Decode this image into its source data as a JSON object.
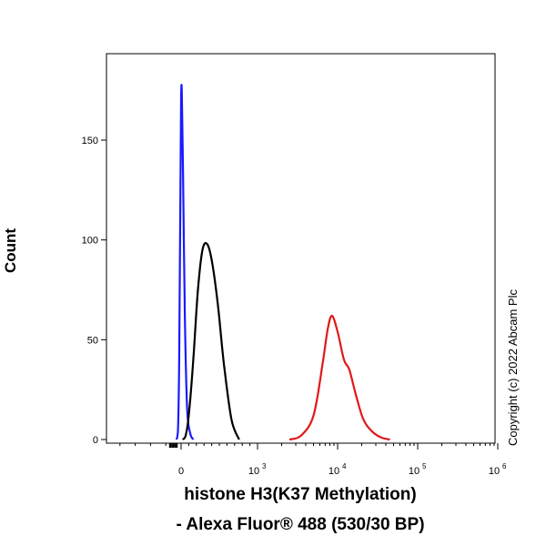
{
  "chart_data": {
    "type": "line",
    "ylabel": "Count",
    "xlabel_line1": "histone H3(K37 Methylation)",
    "xlabel_line2": "- Alexa Fluor® 488 (530/30 BP)",
    "copyright": "Copyright (c) 2022 Abcam Plc",
    "y_ticks": [
      {
        "value": 0,
        "label": "0"
      },
      {
        "value": 50,
        "label": "50"
      },
      {
        "value": 100,
        "label": "100"
      },
      {
        "value": 150,
        "label": "150"
      }
    ],
    "ylim": [
      0,
      195
    ],
    "x_scale": "biexponential",
    "x_ticks": [
      {
        "value": 0,
        "label": "0"
      },
      {
        "value": 1000,
        "label": "10",
        "exp": "3"
      },
      {
        "value": 10000,
        "label": "10",
        "exp": "4"
      },
      {
        "value": 100000,
        "label": "10",
        "exp": "5"
      },
      {
        "value": 1000000,
        "label": "10",
        "exp": "6"
      }
    ],
    "series": [
      {
        "color": "#1a1aff",
        "x": [
          -60,
          -40,
          -25,
          -10,
          0,
          10,
          25,
          50,
          80,
          120,
          160
        ],
        "y": [
          0,
          5,
          40,
          120,
          170,
          174,
          135,
          60,
          15,
          3,
          0
        ]
      },
      {
        "color": "#000000",
        "x": [
          20,
          60,
          100,
          160,
          220,
          280,
          340,
          400,
          480,
          560,
          660,
          760
        ],
        "y": [
          0,
          2,
          12,
          40,
          75,
          95,
          98,
          90,
          68,
          38,
          10,
          0
        ]
      },
      {
        "color": "#e01818",
        "x": [
          2500,
          3500,
          5000,
          6500,
          7500,
          8500,
          10000,
          12000,
          14000,
          17000,
          21000,
          27000,
          35000,
          45000
        ],
        "y": [
          0,
          2,
          12,
          38,
          55,
          62,
          54,
          40,
          35,
          22,
          10,
          4,
          1,
          0
        ]
      }
    ]
  }
}
